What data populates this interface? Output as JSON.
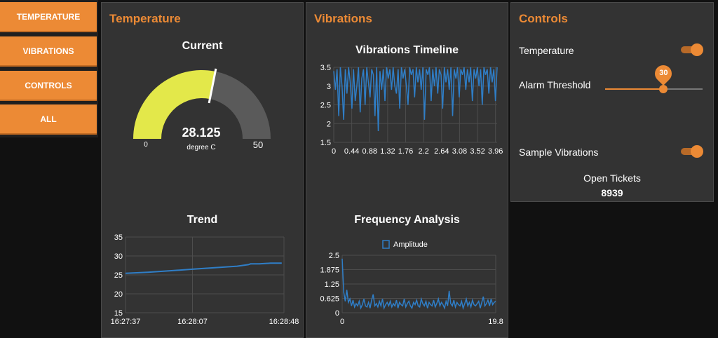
{
  "menu": [
    "TEMPERATURE",
    "VIBRATIONS",
    "CONTROLS",
    "ALL"
  ],
  "temperature_card": {
    "title": "Temperature",
    "gauge": {
      "title": "Current",
      "value": 28.125,
      "value_text": "28.125",
      "units": "degree C",
      "min": 0,
      "max": 50,
      "min_label": "0",
      "max_label": "50",
      "fill_color": "#e3e84a",
      "track_color": "#5a5a5a"
    },
    "trend_title": "Trend"
  },
  "vibrations_card": {
    "title": "Vibrations",
    "timeline_title": "Vibrations Timeline",
    "frequency_title": "Frequency Analysis",
    "frequency_legend": "Amplitude"
  },
  "controls_card": {
    "title": "Controls",
    "temperature_label": "Temperature",
    "temperature_on": true,
    "alarm_label": "Alarm Threshold",
    "alarm_value": "30",
    "alarm_fraction": 0.6,
    "vibrations_label": "Sample Vibrations",
    "vibrations_on": true,
    "tickets_label": "Open Tickets",
    "tickets_value": "8939",
    "accent_color": "#ec8a35"
  },
  "chart_data": [
    {
      "type": "line",
      "title": "Trend",
      "x_ticks": [
        "16:27:37",
        "16:28:07",
        "16:28:48"
      ],
      "y_ticks": [
        "15",
        "20",
        "25",
        "30",
        "35"
      ],
      "ylim": [
        15,
        35
      ],
      "x_seconds": [
        0,
        10,
        20,
        30,
        40,
        50,
        55,
        56,
        60,
        65,
        70
      ],
      "values": [
        25.4,
        25.7,
        26.1,
        26.5,
        26.9,
        27.3,
        27.7,
        27.9,
        27.9,
        28.1,
        28.1
      ],
      "line_color": "#2f7ec7"
    },
    {
      "type": "line",
      "title": "Vibrations Timeline",
      "x_ticks": [
        "0",
        "0.44",
        "0.88",
        "1.32",
        "1.76",
        "2.2",
        "2.64",
        "3.08",
        "3.52",
        "3.96"
      ],
      "y_ticks": [
        "1.5",
        "2",
        "2.5",
        "3",
        "3.5"
      ],
      "xlim": [
        0,
        4.0
      ],
      "ylim": [
        1.5,
        3.5
      ],
      "values": [
        3.4,
        2.9,
        3.45,
        2.2,
        3.5,
        3.0,
        2.1,
        3.45,
        2.8,
        3.5,
        3.1,
        2.4,
        3.45,
        2.6,
        3.0,
        3.5,
        2.3,
        3.2,
        3.45,
        2.5,
        3.5,
        3.1,
        2.7,
        3.45,
        3.3,
        2.2,
        3.5,
        1.8,
        3.4,
        2.9,
        3.45,
        2.6,
        3.5,
        3.2,
        3.45,
        2.9,
        3.5,
        3.0,
        2.8,
        3.45,
        2.4,
        3.5,
        3.2,
        3.45,
        3.0,
        2.5,
        3.5,
        3.3,
        3.45,
        2.7,
        3.5,
        3.1,
        3.45,
        2.9,
        3.5,
        2.1,
        3.45,
        3.3,
        3.5,
        2.6,
        3.45,
        3.0,
        3.5,
        2.8,
        3.45,
        3.3,
        2.4,
        3.5,
        3.1,
        3.45,
        2.9,
        3.5,
        2.2,
        3.45,
        3.2,
        3.5,
        2.7,
        3.45,
        3.3,
        3.5,
        2.9,
        3.45,
        3.1,
        3.5,
        2.6,
        3.45,
        3.2,
        3.5,
        3.0,
        3.45,
        2.5,
        3.5,
        3.3,
        3.45,
        2.8,
        3.5,
        3.1,
        3.45,
        2.6,
        3.5
      ]
    },
    {
      "type": "line",
      "title": "Frequency Analysis",
      "legend": [
        "Amplitude"
      ],
      "x_ticks": [
        "0",
        "19.8"
      ],
      "y_ticks": [
        "0",
        "0.625",
        "1.25",
        "1.875",
        "2.5"
      ],
      "xlim": [
        0,
        19.8
      ],
      "ylim": [
        0,
        2.5
      ],
      "values": [
        2.35,
        0.9,
        0.5,
        1.0,
        0.45,
        0.6,
        0.3,
        0.55,
        0.25,
        0.4,
        0.3,
        0.5,
        0.2,
        0.35,
        0.6,
        0.3,
        0.25,
        0.45,
        0.2,
        0.55,
        0.8,
        0.3,
        0.4,
        0.25,
        0.5,
        0.3,
        0.6,
        0.2,
        0.35,
        0.45,
        0.3,
        0.5,
        0.25,
        0.4,
        0.3,
        0.55,
        0.2,
        0.45,
        0.35,
        0.3,
        0.6,
        0.25,
        0.4,
        0.5,
        0.3,
        0.2,
        0.45,
        0.35,
        0.55,
        0.3,
        0.25,
        0.6,
        0.4,
        0.3,
        0.5,
        0.2,
        0.45,
        0.35,
        0.3,
        0.55,
        0.25,
        0.4,
        0.6,
        0.3,
        0.45,
        0.35,
        0.2,
        0.5,
        0.3,
        0.95,
        0.4,
        0.3,
        0.55,
        0.25,
        0.45,
        0.35,
        0.3,
        0.5,
        0.2,
        0.4,
        0.6,
        0.3,
        0.45,
        0.25,
        0.55,
        0.35,
        0.3,
        0.4,
        0.5,
        0.2,
        0.45,
        0.7,
        0.3,
        0.4,
        0.55,
        0.3,
        0.6,
        0.35,
        0.45,
        0.5
      ],
      "line_color": "#2f7ec7"
    }
  ]
}
